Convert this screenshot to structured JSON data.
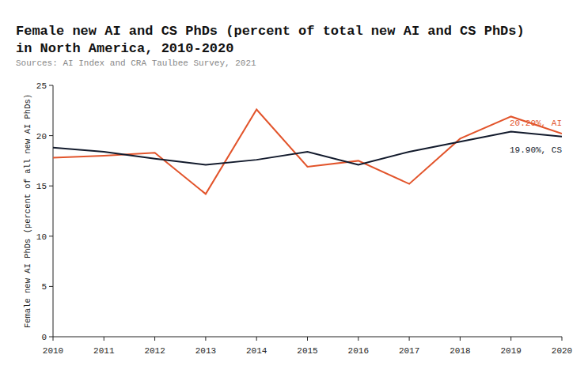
{
  "chart_data": {
    "type": "line",
    "title": "Female new AI and CS PhDs (percent of total new AI and CS PhDs) in North America, 2010-2020",
    "subtitle": "Sources: AI Index and CRA Taulbee Survey, 2021",
    "y_label": "Female new AI PhDs (percent of all new AI PhDs)",
    "x": [
      2010,
      2011,
      2012,
      2013,
      2014,
      2015,
      2016,
      2017,
      2018,
      2019,
      2020
    ],
    "series": [
      {
        "name": "20.20%, AI",
        "color": "#e2542b",
        "values": [
          17.8,
          18.0,
          18.3,
          14.2,
          22.6,
          16.9,
          17.5,
          15.2,
          19.7,
          21.9,
          20.2
        ]
      },
      {
        "name": "19.90%, CS",
        "color": "#121a2c",
        "values": [
          18.8,
          18.4,
          17.7,
          17.1,
          17.6,
          18.4,
          17.1,
          18.4,
          19.4,
          20.4,
          19.9
        ]
      }
    ],
    "xlim": [
      2010,
      2020
    ],
    "xticks": [
      2010,
      2011,
      2012,
      2013,
      2014,
      2015,
      2016,
      2017,
      2018,
      2019,
      2020
    ],
    "ylim": [
      0,
      25
    ],
    "yticks": [
      0,
      5,
      10,
      15,
      20,
      25
    ],
    "grid": false
  }
}
